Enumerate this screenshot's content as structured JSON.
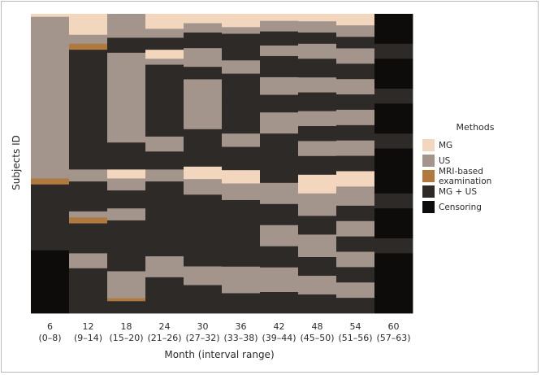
{
  "chart_data": {
    "type": "heatmap",
    "title": "",
    "xlabel": "Month (interval range)",
    "ylabel": "Subjects ID",
    "x_ticks": [
      {
        "month": "6",
        "range": "(0–8)"
      },
      {
        "month": "12",
        "range": "(9–14)"
      },
      {
        "month": "18",
        "range": "(15–20)"
      },
      {
        "month": "24",
        "range": "(21–26)"
      },
      {
        "month": "30",
        "range": "(27–32)"
      },
      {
        "month": "36",
        "range": "(33–38)"
      },
      {
        "month": "42",
        "range": "(39–44)"
      },
      {
        "month": "48",
        "range": "(45–50)"
      },
      {
        "month": "54",
        "range": "(51–56)"
      },
      {
        "month": "60",
        "range": "(57–63)"
      }
    ],
    "legend": {
      "title": "Methods",
      "position": "right",
      "entries": [
        {
          "label": "MG",
          "color": "#f2d6bd"
        },
        {
          "label": "US",
          "color": "#a3958c"
        },
        {
          "label": "MRI-based examination",
          "color": "#b07a3f"
        },
        {
          "label": "MG + US",
          "color": "#2d2a28"
        },
        {
          "label": "Censoring",
          "color": "#0e0b0b"
        }
      ]
    },
    "columns": [
      [
        [
          "MG",
          0.01
        ],
        [
          "US",
          0.54
        ],
        [
          "MRI-based examination",
          0.02
        ],
        [
          "MG + US",
          0.22
        ],
        [
          "Censoring",
          0.21
        ]
      ],
      [
        [
          "MG",
          0.07
        ],
        [
          "US",
          0.03
        ],
        [
          "MRI-based examination",
          0.02
        ],
        [
          "MG + US",
          0.4
        ],
        [
          "US",
          0.04
        ],
        [
          "MG + US",
          0.1
        ],
        [
          "US",
          0.02
        ],
        [
          "MRI-based examination",
          0.02
        ],
        [
          "MG + US",
          0.1
        ],
        [
          "US",
          0.05
        ],
        [
          "MG + US",
          0.15
        ]
      ],
      [
        [
          "US",
          0.08
        ],
        [
          "MG + US",
          0.05
        ],
        [
          "US",
          0.3
        ],
        [
          "MG + US",
          0.09
        ],
        [
          "MG",
          0.03
        ],
        [
          "US",
          0.04
        ],
        [
          "MG + US",
          0.06
        ],
        [
          "US",
          0.04
        ],
        [
          "MG + US",
          0.06
        ],
        [
          "MG + US",
          0.11
        ],
        [
          "US",
          0.09
        ],
        [
          "MRI-based examination",
          0.01
        ],
        [
          "MG + US",
          0.04
        ]
      ],
      [
        [
          "MG",
          0.05
        ],
        [
          "US",
          0.03
        ],
        [
          "MG + US",
          0.04
        ],
        [
          "MG",
          0.03
        ],
        [
          "US",
          0.02
        ],
        [
          "MG + US",
          0.24
        ],
        [
          "US",
          0.05
        ],
        [
          "MG + US",
          0.06
        ],
        [
          "US",
          0.04
        ],
        [
          "MG + US",
          0.05
        ],
        [
          "MG + US",
          0.2
        ],
        [
          "US",
          0.07
        ],
        [
          "MG + US",
          0.12
        ]
      ],
      [
        [
          "MG",
          0.03
        ],
        [
          "US",
          0.03
        ],
        [
          "MG + US",
          0.05
        ],
        [
          "US",
          0.06
        ],
        [
          "MG + US",
          0.04
        ],
        [
          "US",
          0.16
        ],
        [
          "MG + US",
          0.12
        ],
        [
          "MG",
          0.04
        ],
        [
          "US",
          0.05
        ],
        [
          "MG + US",
          0.07
        ],
        [
          "MG + US",
          0.16
        ],
        [
          "US",
          0.06
        ],
        [
          "MG + US",
          0.09
        ]
      ],
      [
        [
          "MG",
          0.04
        ],
        [
          "US",
          0.02
        ],
        [
          "MG + US",
          0.08
        ],
        [
          "US",
          0.04
        ],
        [
          "MG + US",
          0.08
        ],
        [
          "MG + US",
          0.1
        ],
        [
          "US",
          0.04
        ],
        [
          "MG + US",
          0.07
        ],
        [
          "MG",
          0.04
        ],
        [
          "US",
          0.05
        ],
        [
          "MG + US",
          0.09
        ],
        [
          "MG + US",
          0.11
        ],
        [
          "US",
          0.08
        ],
        [
          "MG + US",
          0.06
        ]
      ],
      [
        [
          "MG",
          0.02
        ],
        [
          "US",
          0.03
        ],
        [
          "MG + US",
          0.04
        ],
        [
          "US",
          0.03
        ],
        [
          "MG + US",
          0.06
        ],
        [
          "US",
          0.05
        ],
        [
          "MG + US",
          0.05
        ],
        [
          "US",
          0.06
        ],
        [
          "MG + US",
          0.06
        ],
        [
          "MG + US",
          0.08
        ],
        [
          "US",
          0.06
        ],
        [
          "MG + US",
          0.06
        ],
        [
          "US",
          0.06
        ],
        [
          "MG + US",
          0.06
        ],
        [
          "US",
          0.07
        ],
        [
          "MG + US",
          0.06
        ]
      ],
      [
        [
          "MG",
          0.02
        ],
        [
          "US",
          0.03
        ],
        [
          "MG + US",
          0.03
        ],
        [
          "US",
          0.04
        ],
        [
          "MG + US",
          0.05
        ],
        [
          "US",
          0.04
        ],
        [
          "MG + US",
          0.05
        ],
        [
          "US",
          0.04
        ],
        [
          "MG + US",
          0.04
        ],
        [
          "US",
          0.04
        ],
        [
          "MG + US",
          0.05
        ],
        [
          "MG",
          0.05
        ],
        [
          "US",
          0.06
        ],
        [
          "MG + US",
          0.05
        ],
        [
          "US",
          0.06
        ],
        [
          "MG + US",
          0.05
        ],
        [
          "US",
          0.05
        ],
        [
          "MG + US",
          0.05
        ]
      ],
      [
        [
          "MG",
          0.03
        ],
        [
          "US",
          0.03
        ],
        [
          "MG + US",
          0.03
        ],
        [
          "US",
          0.04
        ],
        [
          "MG + US",
          0.04
        ],
        [
          "US",
          0.04
        ],
        [
          "MG + US",
          0.04
        ],
        [
          "US",
          0.04
        ],
        [
          "MG + US",
          0.04
        ],
        [
          "US",
          0.04
        ],
        [
          "MG + US",
          0.04
        ],
        [
          "MG",
          0.04
        ],
        [
          "US",
          0.05
        ],
        [
          "MG + US",
          0.04
        ],
        [
          "US",
          0.04
        ],
        [
          "MG + US",
          0.04
        ],
        [
          "US",
          0.04
        ],
        [
          "MG + US",
          0.04
        ],
        [
          "US",
          0.04
        ],
        [
          "MG + US",
          0.04
        ]
      ],
      [
        [
          "Censoring",
          0.1
        ],
        [
          "MG + US",
          0.05
        ],
        [
          "Censoring",
          0.1
        ],
        [
          "MG + US",
          0.05
        ],
        [
          "Censoring",
          0.1
        ],
        [
          "MG + US",
          0.05
        ],
        [
          "Censoring",
          0.15
        ],
        [
          "MG + US",
          0.05
        ],
        [
          "Censoring",
          0.1
        ],
        [
          "MG + US",
          0.05
        ],
        [
          "Censoring",
          0.2
        ]
      ]
    ]
  }
}
